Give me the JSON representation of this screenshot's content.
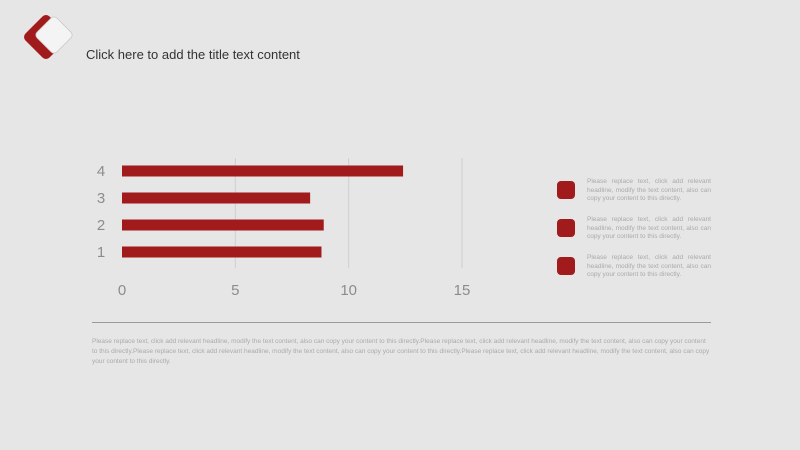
{
  "slide": {
    "title": "Click here to add the title text content",
    "logo_icon": "red-diamond-icon",
    "accent_color": "#a11a1c",
    "background_color": "#e6e6e6"
  },
  "chart_data": {
    "type": "bar",
    "orientation": "horizontal",
    "categories": [
      "1",
      "2",
      "3",
      "4"
    ],
    "values": [
      8.8,
      8.9,
      8.3,
      12.4
    ],
    "xlim": [
      0,
      15
    ],
    "xticks": [
      "0",
      "5",
      "10",
      "15"
    ],
    "grid": true,
    "bar_color": "#a11a1c"
  },
  "legend": {
    "items": [
      "Please replace text, click add relevant headline, modify the text content, also can copy your content to this directly.",
      "Please replace text, click add relevant headline, modify the text content, also can copy your content to this directly.",
      "Please replace text, click add relevant headline, modify the text content, also can copy your content to this directly."
    ]
  },
  "footer": {
    "paragraph": "Please replace text, click add relevant headline, modify the text content, also can copy your content to this directly.Please replace text, click add relevant headline, modify the text content, also can copy your content to this directly.Please replace text, click add relevant headline, modify the text content, also can copy your content to this directly.Please replace text, click add relevant headline, modify the text content, also can copy your content to this directly."
  }
}
